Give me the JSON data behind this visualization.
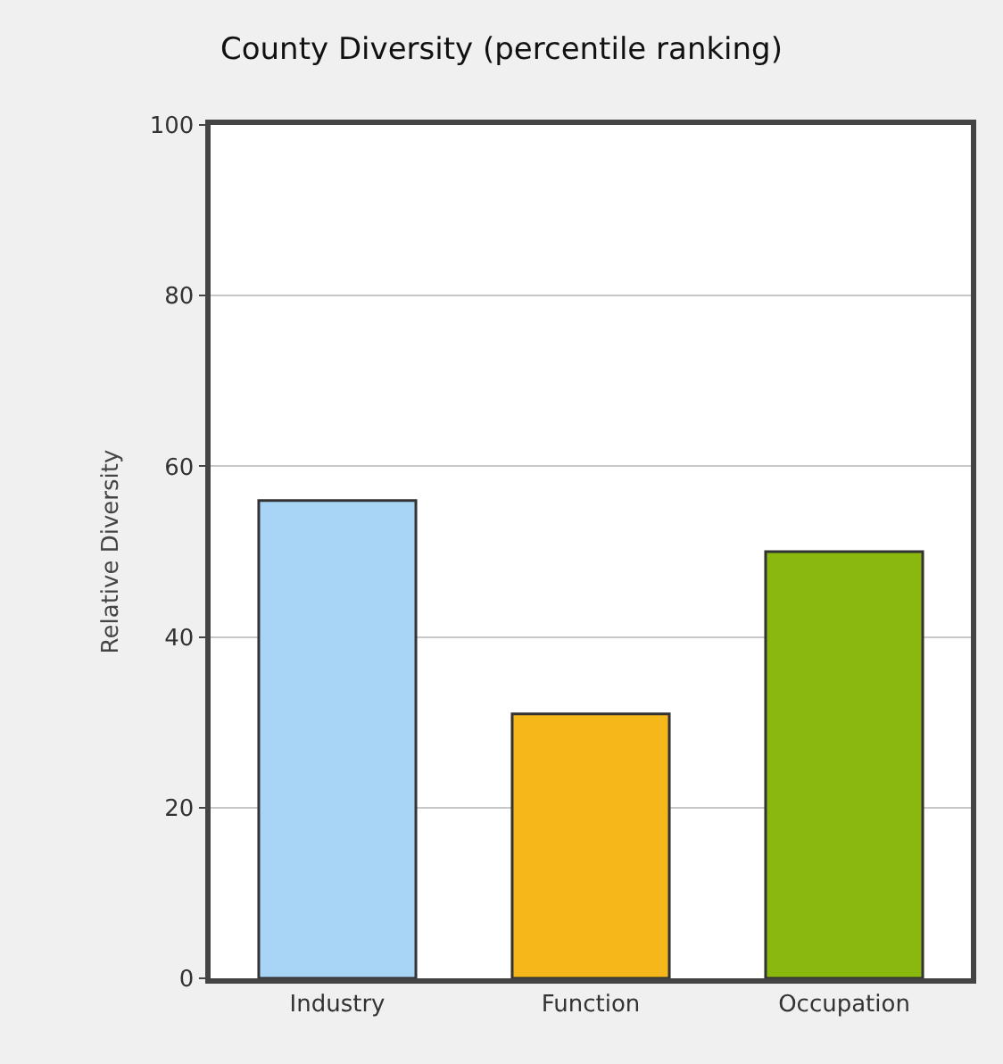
{
  "chart_data": {
    "type": "bar",
    "title": "County Diversity (percentile ranking)",
    "ylabel": "Relative Diversity",
    "categories": [
      "Industry",
      "Function",
      "Occupation"
    ],
    "values": [
      56,
      31,
      50
    ],
    "colors": [
      "#a8d4f5",
      "#f5b719",
      "#8ab80e"
    ],
    "ylim": [
      0,
      100
    ],
    "yticks": [
      0,
      20,
      40,
      60,
      80,
      100
    ],
    "grid": "y",
    "legend": false
  }
}
